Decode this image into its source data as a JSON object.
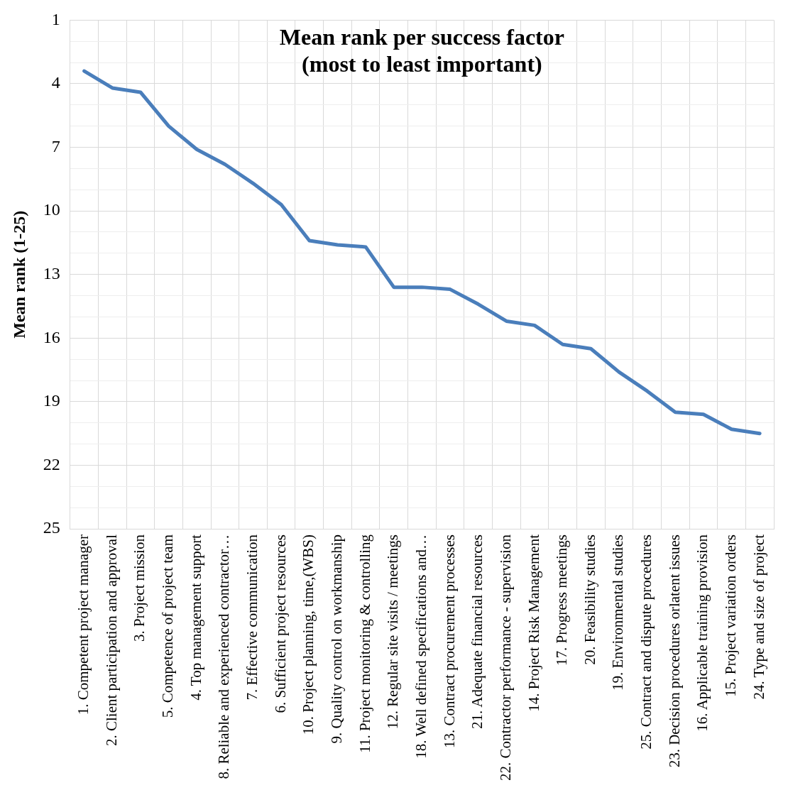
{
  "chart_data": {
    "type": "line",
    "title": "Mean rank per success factor\n(most to least important)",
    "ylabel": "Mean rank (1-25)",
    "categories": [
      "1. Competent project manager",
      "2. Client participation and approval",
      "3. Project mission",
      "5. Competence of project team",
      "4. Top management support",
      "8. Reliable and experienced contractor…",
      "7. Effective communication",
      "6. Sufficient project resources",
      "10. Project planning, time,(WBS)",
      "9. Quality control on workmanship",
      "11. Project monitoring & controlling",
      "12. Regular site visits / meetings",
      "18. Well defined specifications and…",
      "13. Contract procurement processes",
      "21. Adequate financial resources",
      "22. Contractor performance - supervision",
      "14. Project Risk Management",
      "17. Progress meetings",
      "20. Feasibility studies",
      "19. Environmental studies",
      "25. Contract and dispute procedures",
      "23. Decision procedures orlatent issues",
      "16. Applicable training provision",
      "15. Project variation orders",
      "24. Type and size of project"
    ],
    "series": [
      {
        "color": "#4a7ebb",
        "values": [
          3.4,
          4.2,
          4.4,
          6.0,
          7.1,
          7.8,
          8.7,
          9.7,
          11.4,
          11.6,
          11.7,
          13.6,
          13.6,
          13.7,
          14.4,
          15.2,
          15.4,
          16.3,
          16.5,
          17.6,
          18.5,
          19.5,
          19.6,
          20.3,
          20.5
        ]
      }
    ],
    "ylim": [
      25,
      1
    ],
    "yticks": [
      1,
      {
        "value": 2,
        "label": null
      },
      {
        "value": 3,
        "label": null
      },
      4,
      {
        "value": 5,
        "label": null
      },
      {
        "value": 6,
        "label": null
      },
      7,
      {
        "value": 8,
        "label": null
      },
      {
        "value": 9,
        "label": null
      },
      10,
      {
        "value": 11,
        "label": null
      },
      {
        "value": 12,
        "label": null
      },
      13,
      {
        "value": 14,
        "label": null
      },
      {
        "value": 15,
        "label": null
      },
      16,
      {
        "value": 17,
        "label": null
      },
      {
        "value": 18,
        "label": null
      },
      19,
      {
        "value": 20,
        "label": null
      },
      {
        "value": 21,
        "label": null
      },
      22,
      {
        "value": 23,
        "label": null
      },
      {
        "value": 24,
        "label": null
      },
      25
    ],
    "grid": true,
    "legend": false,
    "marker": "none",
    "line_style": "solid"
  }
}
